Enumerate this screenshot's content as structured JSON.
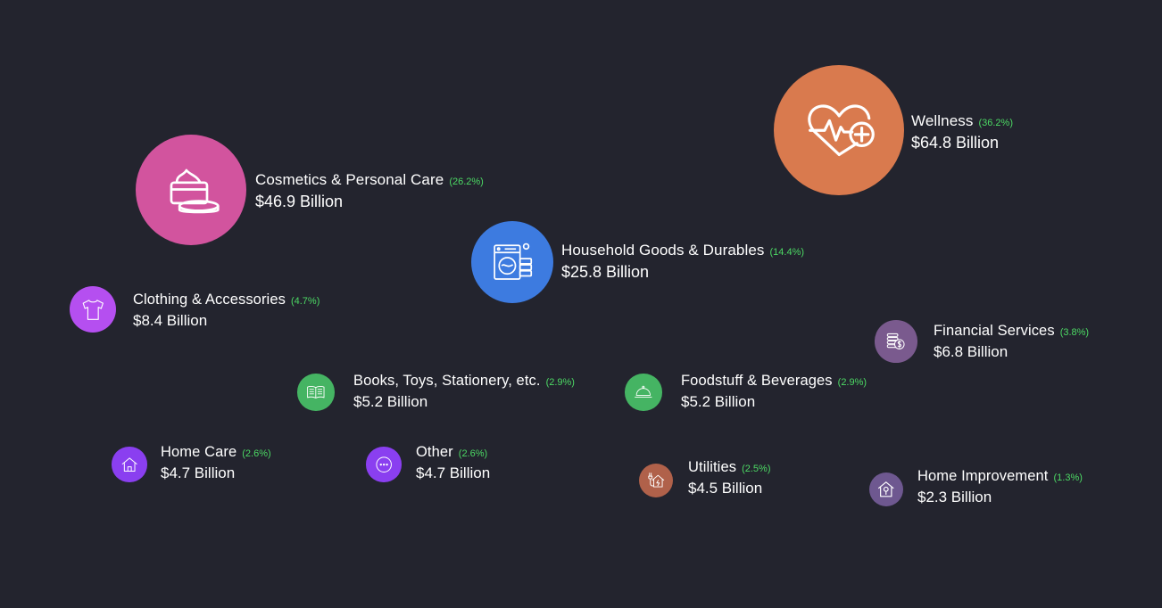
{
  "chart_data": {
    "type": "bubble",
    "title": "",
    "items": [
      {
        "key": "wellness",
        "name": "Wellness",
        "share": "(36.2%)",
        "value": 64.8,
        "value_label": "$64.8 Billion",
        "color": "#d97a4e",
        "icon": "heart-pulse-plus-icon"
      },
      {
        "key": "cosmetics",
        "name": "Cosmetics & Personal Care",
        "share": "(26.2%)",
        "value": 46.9,
        "value_label": "$46.9 Billion",
        "color": "#d2549e",
        "icon": "cream-jar-icon"
      },
      {
        "key": "household",
        "name": "Household Goods & Durables",
        "share": "(14.4%)",
        "value": 25.8,
        "value_label": "$25.8 Billion",
        "color": "#3d7be0",
        "icon": "washing-machine-icon"
      },
      {
        "key": "clothing",
        "name": "Clothing & Accessories",
        "share": "(4.7%)",
        "value": 8.4,
        "value_label": "$8.4 Billion",
        "color": "#b54ff0",
        "icon": "tshirt-icon"
      },
      {
        "key": "financial",
        "name": "Financial Services",
        "share": "(3.8%)",
        "value": 6.8,
        "value_label": "$6.8 Billion",
        "color": "#7a5a8e",
        "icon": "coins-icon"
      },
      {
        "key": "books",
        "name": "Books, Toys, Stationery, etc.",
        "share": "(2.9%)",
        "value": 5.2,
        "value_label": "$5.2 Billion",
        "color": "#45b463",
        "icon": "book-icon"
      },
      {
        "key": "foodstuff",
        "name": "Foodstuff & Beverages",
        "share": "(2.9%)",
        "value": 5.2,
        "value_label": "$5.2 Billion",
        "color": "#45b463",
        "icon": "food-cloche-icon"
      },
      {
        "key": "homecare",
        "name": "Home Care",
        "share": "(2.6%)",
        "value": 4.7,
        "value_label": "$4.7 Billion",
        "color": "#8a3ff0",
        "icon": "house-icon"
      },
      {
        "key": "other",
        "name": "Other",
        "share": "(2.6%)",
        "value": 4.7,
        "value_label": "$4.7 Billion",
        "color": "#8a3ff0",
        "icon": "more-dots-icon"
      },
      {
        "key": "utilities",
        "name": "Utilities",
        "share": "(2.5%)",
        "value": 4.5,
        "value_label": "$4.5 Billion",
        "color": "#b0614a",
        "icon": "house-plug-icon"
      },
      {
        "key": "homeimprovement",
        "name": "Home Improvement",
        "share": "(1.3%)",
        "value": 2.3,
        "value_label": "$2.3 Billion",
        "color": "#6e5890",
        "icon": "house-tool-icon"
      }
    ]
  }
}
